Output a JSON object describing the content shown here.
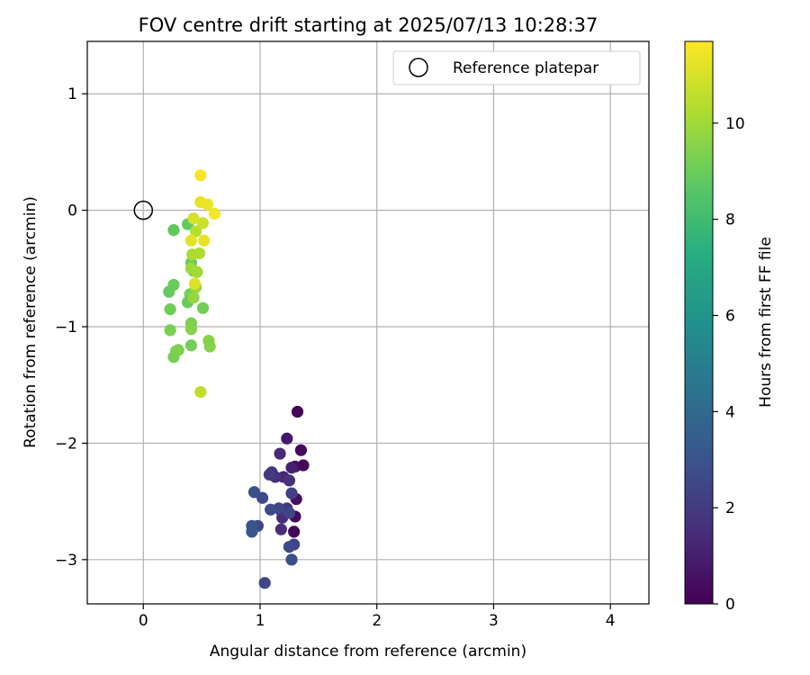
{
  "chart_data": {
    "type": "scatter",
    "title": "FOV centre drift starting at 2025/07/13 10:28:37",
    "xlabel": "Angular distance from reference (arcmin)",
    "ylabel": "Rotation from reference (arcmin)",
    "xlim": [
      -0.48,
      4.33
    ],
    "ylim": [
      -3.38,
      1.45
    ],
    "xticks": [
      0,
      1,
      2,
      3,
      4
    ],
    "yticks": [
      -3,
      -2,
      -1,
      0,
      1
    ],
    "grid": true,
    "legend": {
      "position": "top-right",
      "entries": [
        "Reference platepar"
      ]
    },
    "colorbar": {
      "label": "Hours from first FF file",
      "range": [
        0,
        11.7
      ],
      "ticks": [
        0,
        2,
        4,
        6,
        8,
        10
      ],
      "colormap": "viridis"
    },
    "reference_point": {
      "x": 0,
      "y": 0,
      "name": "Reference platepar"
    },
    "points": [
      {
        "x": 1.32,
        "y": -1.73,
        "c": 0.1
      },
      {
        "x": 1.37,
        "y": -2.19,
        "c": 0.2
      },
      {
        "x": 1.35,
        "y": -2.06,
        "c": 0.3
      },
      {
        "x": 1.3,
        "y": -2.2,
        "c": 0.4
      },
      {
        "x": 1.29,
        "y": -2.76,
        "c": 0.2
      },
      {
        "x": 1.3,
        "y": -2.63,
        "c": 0.3
      },
      {
        "x": 1.31,
        "y": -2.48,
        "c": 0.5
      },
      {
        "x": 1.23,
        "y": -1.96,
        "c": 0.8
      },
      {
        "x": 1.27,
        "y": -2.21,
        "c": 1.0
      },
      {
        "x": 1.2,
        "y": -2.29,
        "c": 1.2
      },
      {
        "x": 1.17,
        "y": -2.09,
        "c": 1.4
      },
      {
        "x": 1.25,
        "y": -2.32,
        "c": 1.6
      },
      {
        "x": 1.1,
        "y": -2.25,
        "c": 1.8
      },
      {
        "x": 1.13,
        "y": -2.29,
        "c": 1.7
      },
      {
        "x": 1.08,
        "y": -2.27,
        "c": 2.0
      },
      {
        "x": 1.18,
        "y": -2.58,
        "c": 1.3
      },
      {
        "x": 1.19,
        "y": -2.64,
        "c": 1.5
      },
      {
        "x": 1.18,
        "y": -2.74,
        "c": 1.6
      },
      {
        "x": 1.23,
        "y": -2.56,
        "c": 1.9
      },
      {
        "x": 1.27,
        "y": -2.43,
        "c": 2.2
      },
      {
        "x": 1.25,
        "y": -2.6,
        "c": 2.4
      },
      {
        "x": 1.16,
        "y": -2.56,
        "c": 2.5
      },
      {
        "x": 1.09,
        "y": -2.57,
        "c": 2.7
      },
      {
        "x": 1.29,
        "y": -2.87,
        "c": 2.3
      },
      {
        "x": 1.25,
        "y": -2.89,
        "c": 2.6
      },
      {
        "x": 1.27,
        "y": -3.0,
        "c": 2.8
      },
      {
        "x": 0.95,
        "y": -2.42,
        "c": 2.9
      },
      {
        "x": 1.02,
        "y": -2.47,
        "c": 2.6
      },
      {
        "x": 0.98,
        "y": -2.71,
        "c": 2.4
      },
      {
        "x": 0.93,
        "y": -2.71,
        "c": 3.0
      },
      {
        "x": 0.93,
        "y": -2.76,
        "c": 3.1
      },
      {
        "x": 1.04,
        "y": -3.2,
        "c": 2.5
      },
      {
        "x": 0.26,
        "y": -0.17,
        "c": 8.8
      },
      {
        "x": 0.38,
        "y": -0.12,
        "c": 8.9
      },
      {
        "x": 0.41,
        "y": -0.45,
        "c": 9.0
      },
      {
        "x": 0.43,
        "y": -0.52,
        "c": 9.1
      },
      {
        "x": 0.22,
        "y": -0.7,
        "c": 8.9
      },
      {
        "x": 0.26,
        "y": -0.64,
        "c": 9.0
      },
      {
        "x": 0.4,
        "y": -0.72,
        "c": 9.2
      },
      {
        "x": 0.38,
        "y": -0.79,
        "c": 9.0
      },
      {
        "x": 0.23,
        "y": -0.85,
        "c": 9.1
      },
      {
        "x": 0.51,
        "y": -0.84,
        "c": 9.2
      },
      {
        "x": 0.23,
        "y": -1.03,
        "c": 9.3
      },
      {
        "x": 0.41,
        "y": -0.97,
        "c": 9.4
      },
      {
        "x": 0.41,
        "y": -1.02,
        "c": 9.5
      },
      {
        "x": 0.56,
        "y": -1.12,
        "c": 9.6
      },
      {
        "x": 0.57,
        "y": -1.17,
        "c": 9.5
      },
      {
        "x": 0.3,
        "y": -1.2,
        "c": 9.3
      },
      {
        "x": 0.28,
        "y": -1.21,
        "c": 9.4
      },
      {
        "x": 0.41,
        "y": -1.16,
        "c": 9.2
      },
      {
        "x": 0.26,
        "y": -1.26,
        "c": 9.3
      },
      {
        "x": 0.43,
        "y": -0.75,
        "c": 9.8
      },
      {
        "x": 0.45,
        "y": -0.66,
        "c": 9.9
      },
      {
        "x": 0.41,
        "y": -0.5,
        "c": 10.0
      },
      {
        "x": 0.46,
        "y": -0.53,
        "c": 10.1
      },
      {
        "x": 0.42,
        "y": -0.38,
        "c": 10.2
      },
      {
        "x": 0.48,
        "y": -0.37,
        "c": 10.3
      },
      {
        "x": 0.45,
        "y": -0.18,
        "c": 10.4
      },
      {
        "x": 0.49,
        "y": -1.56,
        "c": 10.6
      },
      {
        "x": 0.51,
        "y": -0.11,
        "c": 10.8
      },
      {
        "x": 0.43,
        "y": -0.07,
        "c": 11.0
      },
      {
        "x": 0.44,
        "y": -0.63,
        "c": 11.1
      },
      {
        "x": 0.41,
        "y": -0.26,
        "c": 11.2
      },
      {
        "x": 0.52,
        "y": -0.26,
        "c": 11.3
      },
      {
        "x": 0.49,
        "y": 0.07,
        "c": 11.3
      },
      {
        "x": 0.55,
        "y": 0.05,
        "c": 11.4
      },
      {
        "x": 0.61,
        "y": -0.03,
        "c": 11.5
      },
      {
        "x": 0.49,
        "y": 0.3,
        "c": 11.6
      }
    ]
  }
}
